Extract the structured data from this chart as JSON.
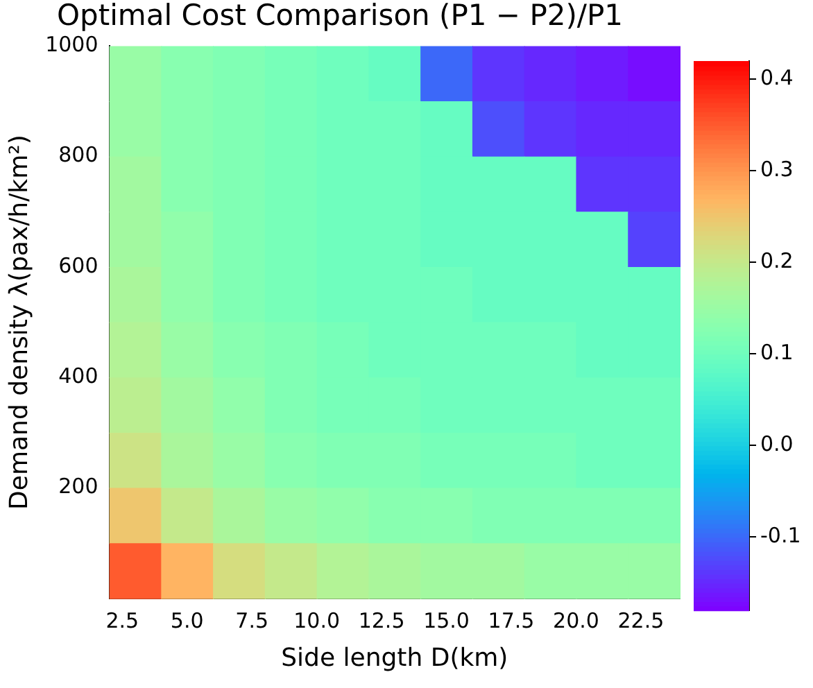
{
  "chart_data": {
    "type": "heatmap",
    "title": "Optimal Cost Comparison (P1 − P2)/P1",
    "xlabel": "Side length D(km)",
    "ylabel": "Demand density λ(pax/h/km²)",
    "xlim": [
      2,
      24
    ],
    "ylim": [
      0,
      1000
    ],
    "xticks": [
      2.5,
      {
        "value": 5,
        "label": "5.0"
      },
      7.5,
      {
        "value": 10,
        "label": "10.0"
      },
      12.5,
      {
        "value": 15,
        "label": "15.0"
      },
      17.5,
      {
        "value": 20,
        "label": "20.0"
      },
      22.5
    ],
    "yticks": [
      200,
      400,
      600,
      800,
      1000
    ],
    "clim": [
      -0.18,
      0.42
    ],
    "cticks": [
      -0.1,
      {
        "value": 0,
        "label": "0.0"
      },
      0.1,
      0.2,
      0.3,
      0.4
    ],
    "grid": false,
    "cells": [
      [
        0.15,
        0.13,
        0.12,
        0.11,
        0.1,
        0.09,
        -0.1,
        -0.14,
        -0.15,
        -0.16,
        -0.17
      ],
      [
        0.15,
        0.13,
        0.12,
        0.11,
        0.1,
        0.1,
        0.09,
        -0.12,
        -0.14,
        -0.15,
        -0.15
      ],
      [
        0.16,
        0.13,
        0.12,
        0.11,
        0.1,
        0.1,
        0.09,
        0.09,
        0.09,
        -0.14,
        -0.14
      ],
      [
        0.16,
        0.14,
        0.12,
        0.11,
        0.1,
        0.1,
        0.09,
        0.09,
        0.09,
        0.09,
        -0.13
      ],
      [
        0.17,
        0.14,
        0.12,
        0.11,
        0.1,
        0.1,
        0.1,
        0.09,
        0.09,
        0.09,
        0.09
      ],
      [
        0.18,
        0.15,
        0.13,
        0.12,
        0.11,
        0.1,
        0.1,
        0.1,
        0.1,
        0.09,
        0.09
      ],
      [
        0.19,
        0.16,
        0.14,
        0.12,
        0.11,
        0.11,
        0.1,
        0.1,
        0.1,
        0.1,
        0.1
      ],
      [
        0.21,
        0.17,
        0.15,
        0.13,
        0.12,
        0.12,
        0.11,
        0.11,
        0.11,
        0.1,
        0.1
      ],
      [
        0.25,
        0.2,
        0.17,
        0.15,
        0.14,
        0.13,
        0.13,
        0.12,
        0.12,
        0.12,
        0.12
      ],
      [
        0.35,
        0.27,
        0.22,
        0.2,
        0.18,
        0.17,
        0.16,
        0.16,
        0.15,
        0.15,
        0.15
      ]
    ]
  }
}
